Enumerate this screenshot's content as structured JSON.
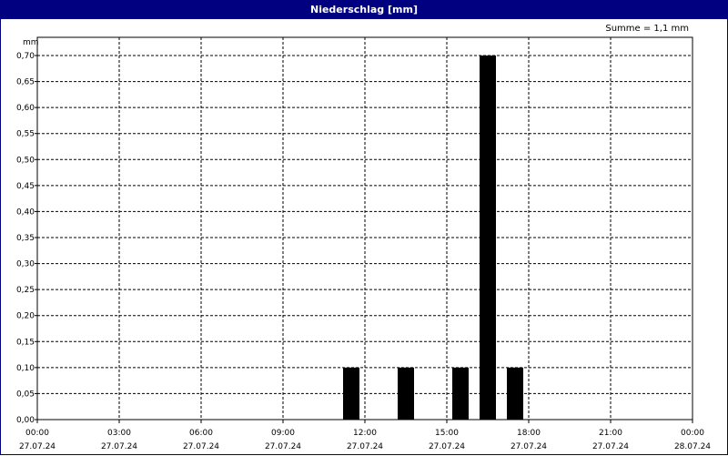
{
  "window": {
    "title": "Niederschlag [mm]"
  },
  "summary": {
    "text": "Summe = 1,1 mm"
  },
  "chart_data": {
    "type": "bar",
    "ylabel": "mm",
    "ylim": [
      0,
      0.7
    ],
    "y_ticks": [
      "0,00",
      "0,05",
      "0,10",
      "0,15",
      "0,20",
      "0,25",
      "0,30",
      "0,35",
      "0,40",
      "0,45",
      "0,50",
      "0,55",
      "0,60",
      "0,65",
      "0,70"
    ],
    "y_tick_values": [
      0,
      0.05,
      0.1,
      0.15,
      0.2,
      0.25,
      0.3,
      0.35,
      0.4,
      0.45,
      0.5,
      0.55,
      0.6,
      0.65,
      0.7
    ],
    "x_range": [
      "27.07.24 00:00",
      "28.07.24 00:00"
    ],
    "x_ticks": [
      {
        "time": "00:00",
        "date": "27.07.24"
      },
      {
        "time": "03:00",
        "date": "27.07.24"
      },
      {
        "time": "06:00",
        "date": "27.07.24"
      },
      {
        "time": "09:00",
        "date": "27.07.24"
      },
      {
        "time": "12:00",
        "date": "27.07.24"
      },
      {
        "time": "15:00",
        "date": "27.07.24"
      },
      {
        "time": "18:00",
        "date": "27.07.24"
      },
      {
        "time": "21:00",
        "date": "27.07.24"
      },
      {
        "time": "00:00",
        "date": "28.07.24"
      }
    ],
    "bars": [
      {
        "start": "11:00",
        "end": "12:00",
        "value": 0.1
      },
      {
        "start": "13:00",
        "end": "14:00",
        "value": 0.1
      },
      {
        "start": "15:00",
        "end": "16:00",
        "value": 0.1
      },
      {
        "start": "16:00",
        "end": "17:00",
        "value": 0.7
      },
      {
        "start": "17:00",
        "end": "18:00",
        "value": 0.1
      }
    ],
    "grid": true,
    "bar_color": "#000000",
    "title_bar_color": "#000080"
  }
}
